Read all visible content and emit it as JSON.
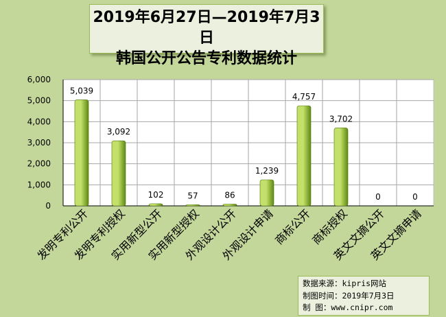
{
  "title": {
    "line1": "2019年6月27日—2019年7月3日",
    "line2": "韩国公开公告专利数据统计"
  },
  "source": {
    "line1": "数据来源：kipris网站",
    "line2": "制图时间：2019年7月3日",
    "line3": "制    图：www.cnipr.com"
  },
  "colors": {
    "background": "#c4d79b",
    "plot_area": "#ffffff",
    "bar_light": "#c3e06a",
    "bar_dark": "#5f8a12",
    "grid": "#a6a6a6"
  },
  "chart_data": {
    "type": "bar",
    "categories": [
      "发明专利公开",
      "发明专利授权",
      "实用新型公开",
      "实用新型授权",
      "外观设计公开",
      "外观设计申请",
      "商标公开",
      "商标授权",
      "英文文摘公开",
      "英文文摘申请"
    ],
    "values": [
      5039,
      3092,
      102,
      57,
      86,
      1239,
      4757,
      3702,
      0,
      0
    ],
    "value_labels": [
      "5,039",
      "3,092",
      "102",
      "57",
      "86",
      "1,239",
      "4,757",
      "3,702",
      "0",
      "0"
    ],
    "y_ticks": [
      "0",
      "1,000",
      "2,000",
      "3,000",
      "4,000",
      "5,000",
      "6,000"
    ],
    "ylim": [
      0,
      6000
    ],
    "grid": true,
    "legend": "none"
  }
}
